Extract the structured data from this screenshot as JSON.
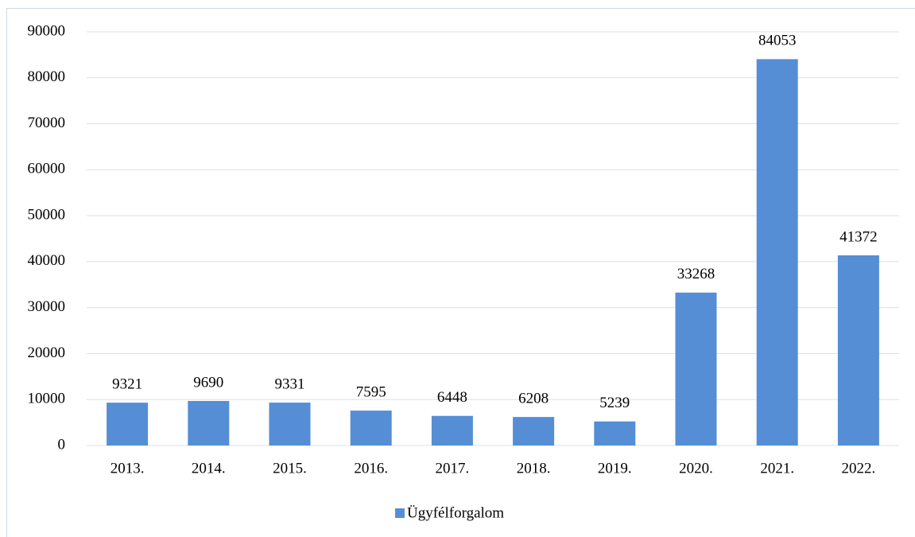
{
  "chart_data": {
    "type": "bar",
    "categories": [
      "2013.",
      "2014.",
      "2015.",
      "2016.",
      "2017.",
      "2018.",
      "2019.",
      "2020.",
      "2021.",
      "2022."
    ],
    "series": [
      {
        "name": "Ügyfélforgalom",
        "color": "#558ed5",
        "values": [
          9321,
          9690,
          9331,
          7595,
          6448,
          6208,
          5239,
          33268,
          84053,
          41372
        ]
      }
    ],
    "ylim": [
      0,
      90000
    ],
    "yticks": [
      0,
      10000,
      20000,
      30000,
      40000,
      50000,
      60000,
      70000,
      80000,
      90000
    ],
    "grid": true,
    "legend": "bottom",
    "data_labels": true
  }
}
